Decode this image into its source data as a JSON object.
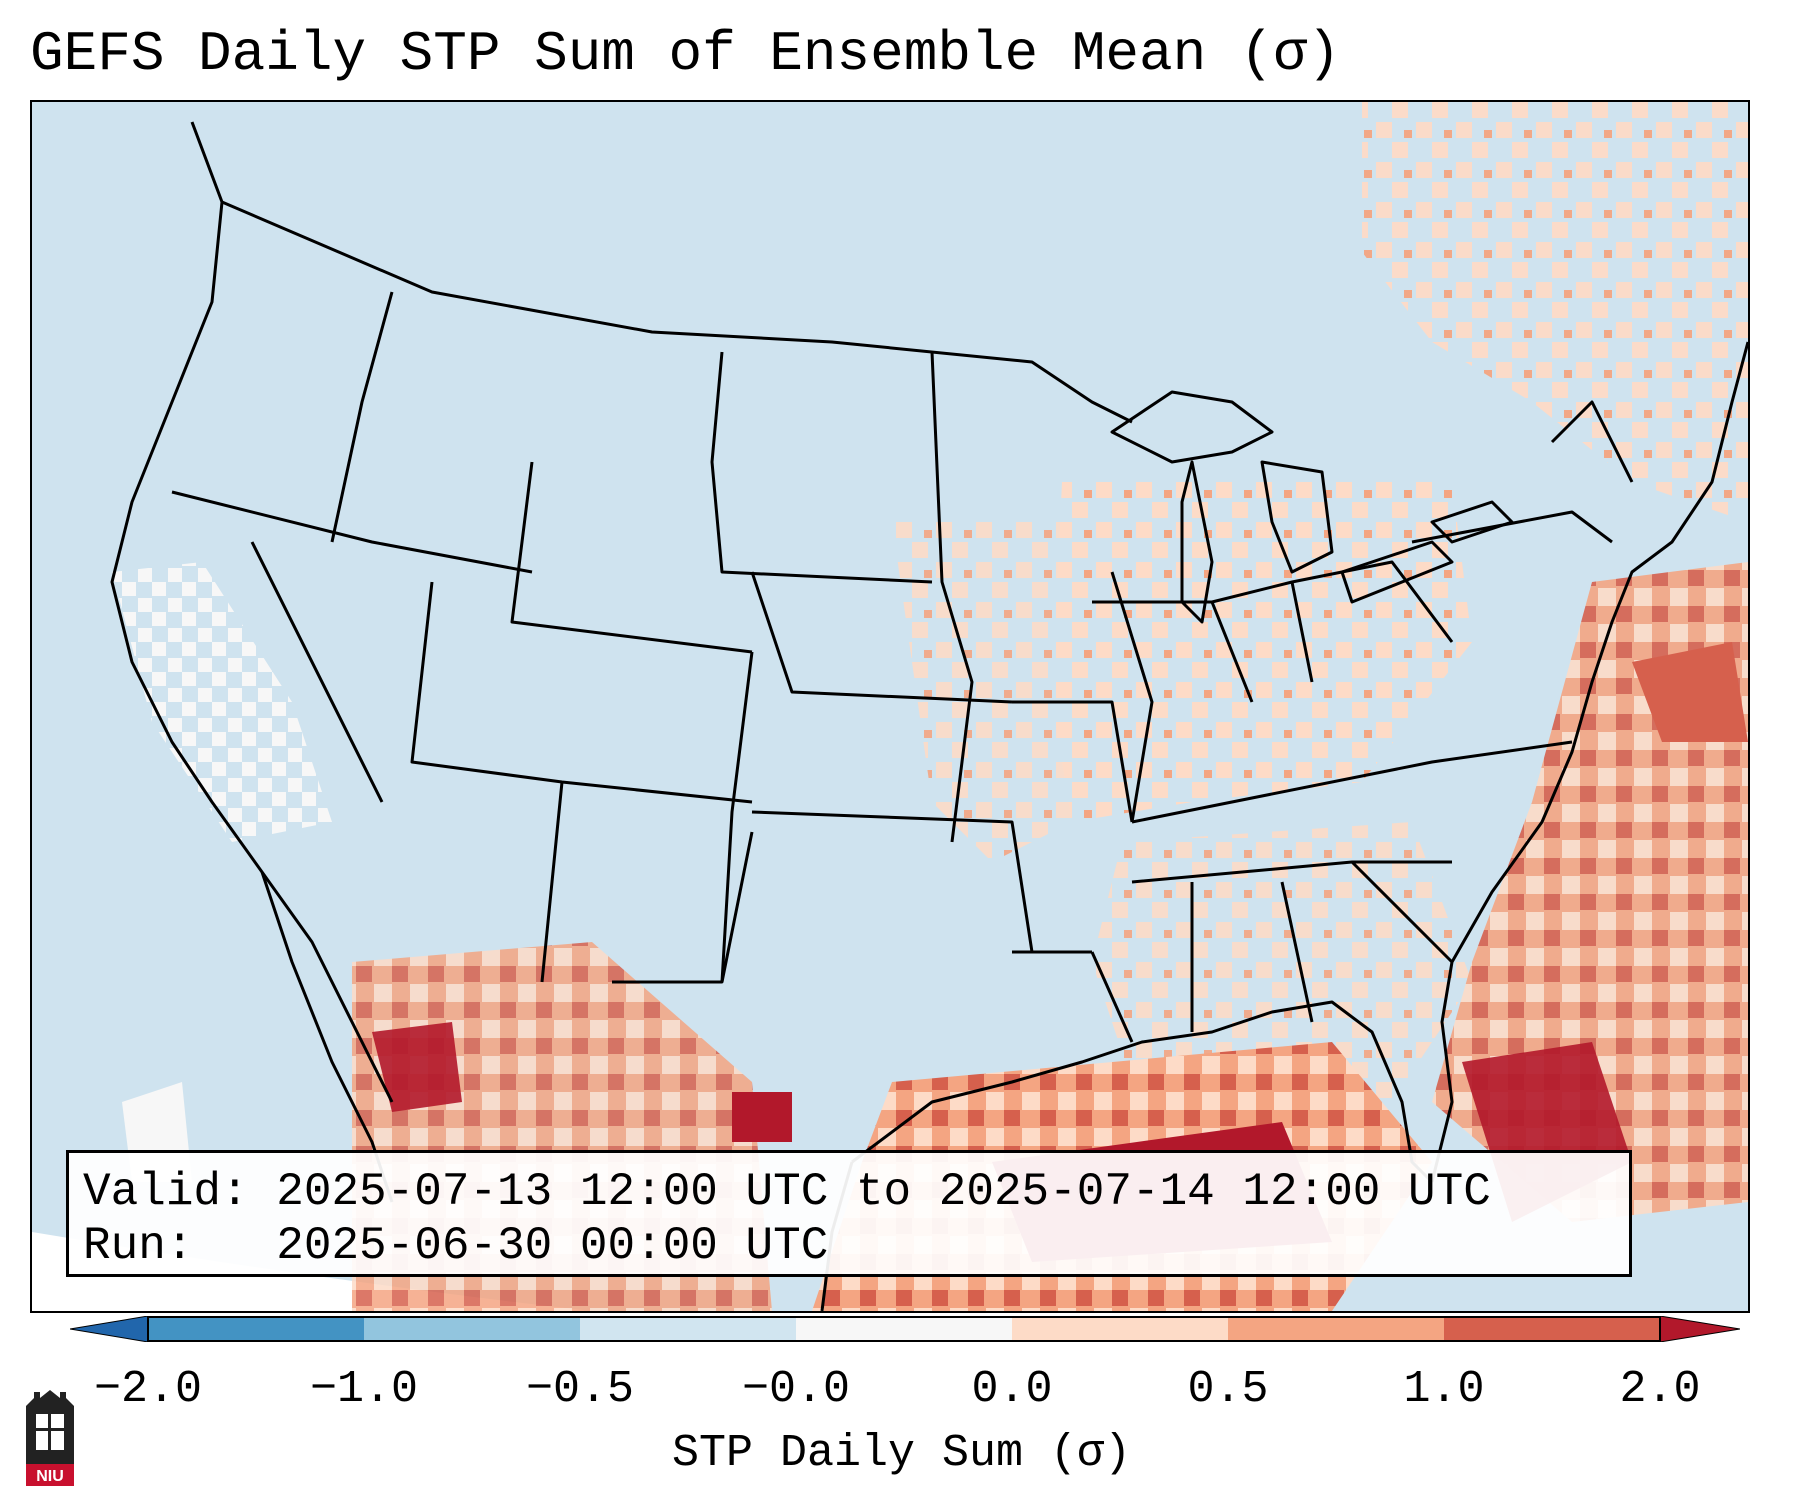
{
  "title": "GEFS Daily STP Sum of Ensemble Mean (σ)",
  "map": {
    "region": "Contiguous United States",
    "ocean_color": "#cfe3ef",
    "land_color": "#cfe3ef",
    "border_color": "#000000"
  },
  "info": {
    "valid_line": "Valid: 2025-07-13 12:00 UTC to 2025-07-14 12:00 UTC",
    "run_line": "Run:   2025-06-30 00:00 UTC"
  },
  "colorbar": {
    "label": "STP Daily Sum (σ)",
    "ticks": [
      "−2.0",
      "−1.0",
      "−0.5",
      "−0.0",
      "0.0",
      "0.5",
      "1.0",
      "2.0"
    ],
    "colors": [
      "#4393c3",
      "#92c5de",
      "#d1e5f0",
      "#f7f7f7",
      "#fddbc7",
      "#f4a582",
      "#d6604d",
      "#b2182b"
    ],
    "under_color": "#2166ac",
    "over_color": "#b2182b"
  },
  "logo": {
    "text": "NIU"
  }
}
